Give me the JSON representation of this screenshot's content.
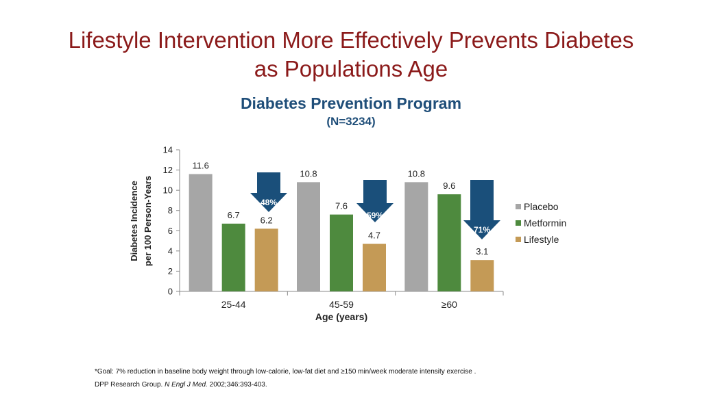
{
  "slide": {
    "title_line1": "Lifestyle Intervention More Effectively Prevents Diabetes",
    "title_line2": "as Populations Age",
    "footnote_goal": "*Goal: 7% reduction in baseline body weight through low-calorie, low-fat diet and ≥150 min/week moderate intensity exercise .",
    "citation_authors": "DPP Research Group. ",
    "citation_journal": "N Engl J Med.",
    "citation_details": " 2002;346:393-403."
  },
  "colors": {
    "title": "#8b1a1a",
    "chart_title": "#1f4e79",
    "placebo": "#a6a6a6",
    "metformin": "#4e8a3e",
    "lifestyle": "#c49a56",
    "arrow": "#1a4f7a"
  },
  "chart_data": {
    "type": "bar",
    "title": "Diabetes Prevention Program",
    "subtitle": "(N=3234)",
    "xlabel": "Age (years)",
    "ylabel_line1": "Diabetes Incidence",
    "ylabel_line2": "per 100 Person-Years",
    "ylim": [
      0,
      14
    ],
    "yticks": [
      "0",
      "2",
      "4",
      "6",
      "8",
      "10",
      "12",
      "14"
    ],
    "categories": [
      "25-44",
      "45-59",
      "≥60"
    ],
    "series": [
      {
        "name": "Placebo",
        "values": [
          11.6,
          10.8,
          10.8
        ],
        "labels": [
          "11.6",
          "10.8",
          "10.8"
        ]
      },
      {
        "name": "Metformin",
        "values": [
          6.7,
          7.6,
          9.6
        ],
        "labels": [
          "6.7",
          "7.6",
          "9.6"
        ]
      },
      {
        "name": "Lifestyle",
        "values": [
          6.2,
          4.7,
          3.1
        ],
        "labels": [
          "6.2",
          "4.7",
          "3.1"
        ]
      }
    ],
    "annotations": [
      "48%",
      "59%",
      "71%"
    ],
    "legend_position": "right",
    "grid": false
  }
}
